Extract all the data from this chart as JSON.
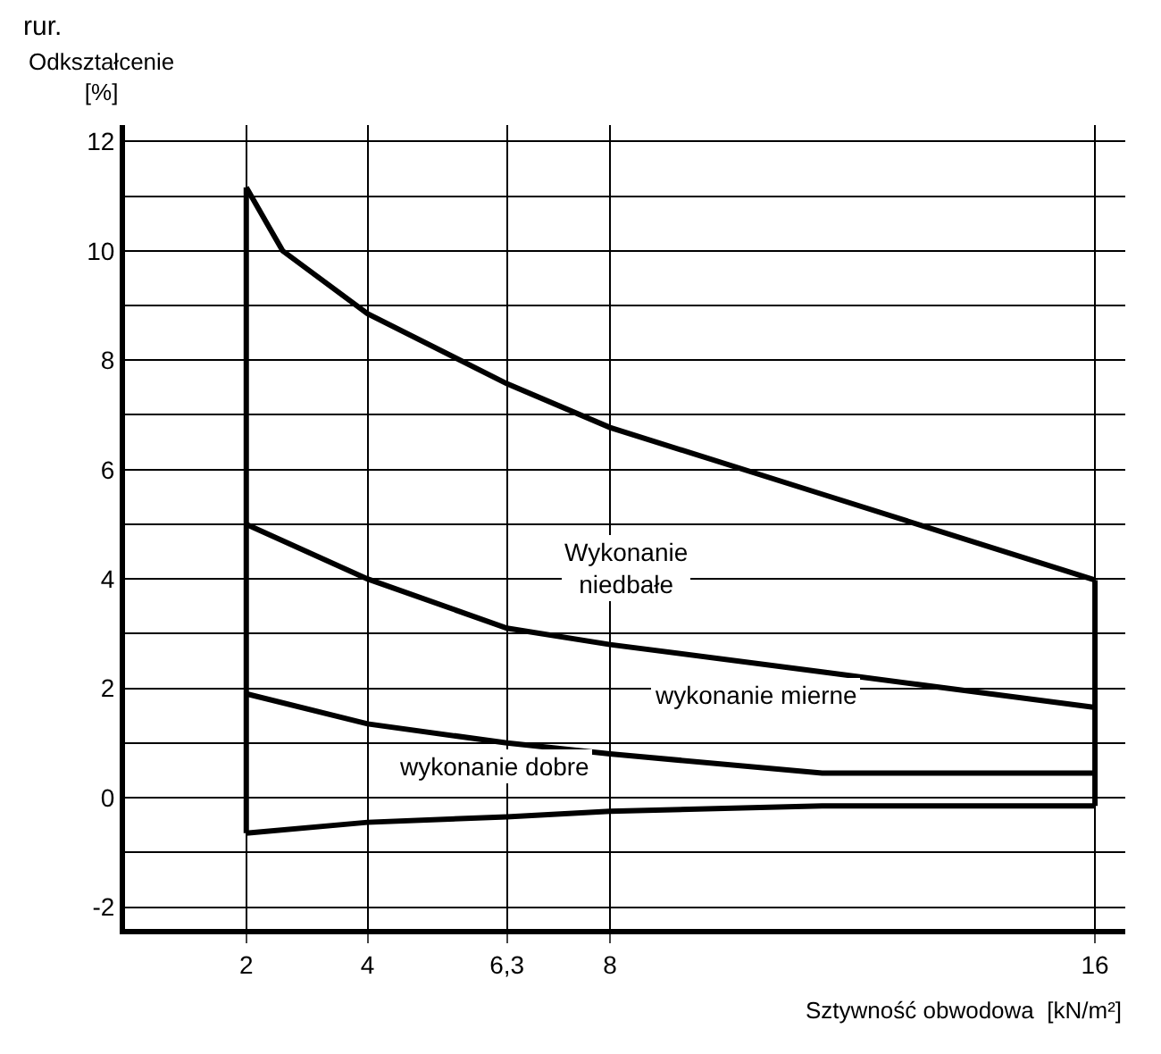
{
  "chart_data": {
    "type": "line",
    "title": "rur.",
    "xlabel": "Sztywność obwodowa  [kN/m²]",
    "ylabel": "Odkształcenie\n[%]",
    "series": [
      {
        "color": "#000000",
        "x": [
          2,
          2.6,
          4,
          6.3,
          8,
          11.5,
          16
        ],
        "values": [
          11.16,
          10.0,
          8.85,
          7.57,
          6.77,
          5.55,
          3.98
        ]
      },
      {
        "color": "#000000",
        "x": [
          2,
          4,
          6.3,
          8,
          11.5,
          16
        ],
        "values": [
          -0.65,
          -0.45,
          -0.35,
          -0.25,
          -0.15,
          -0.15
        ]
      },
      {
        "color": "#000000",
        "x": [
          2,
          2
        ],
        "values": [
          -0.65,
          11.16
        ]
      },
      {
        "color": "#000000",
        "x": [
          16,
          16
        ],
        "values": [
          -0.15,
          3.98
        ]
      },
      {
        "color": "#000000",
        "x": [
          2,
          4,
          6.3,
          8,
          11.5,
          16
        ],
        "values": [
          5.0,
          4.0,
          3.1,
          2.8,
          2.3,
          1.65
        ]
      },
      {
        "color": "#000000",
        "x": [
          2,
          4,
          6.3,
          8,
          11.5,
          16
        ],
        "values": [
          1.9,
          1.35,
          1.0,
          0.8,
          0.45,
          0.45
        ]
      }
    ],
    "xlim": [
      0,
      16.5
    ],
    "xticks": [
      2,
      4,
      {
        "value": 6.3,
        "label": "6,3"
      },
      8,
      16
    ],
    "ylim": [
      -2.4,
      12.3
    ],
    "yticks": [
      -2,
      {
        "value": -1,
        "label": null
      },
      0,
      {
        "value": 1,
        "label": null
      },
      2,
      {
        "value": 3,
        "label": null
      },
      4,
      {
        "value": 5,
        "label": null
      },
      6,
      {
        "value": 7,
        "label": null
      },
      8,
      {
        "value": 9,
        "label": null
      },
      10,
      {
        "value": 11,
        "label": null
      },
      12
    ],
    "grid": true,
    "marker": "none",
    "line_style": "solid",
    "annotations": [
      "Wykonanie\nniedbałe",
      "wykonanie mierne",
      "wykonanie dobre"
    ]
  }
}
